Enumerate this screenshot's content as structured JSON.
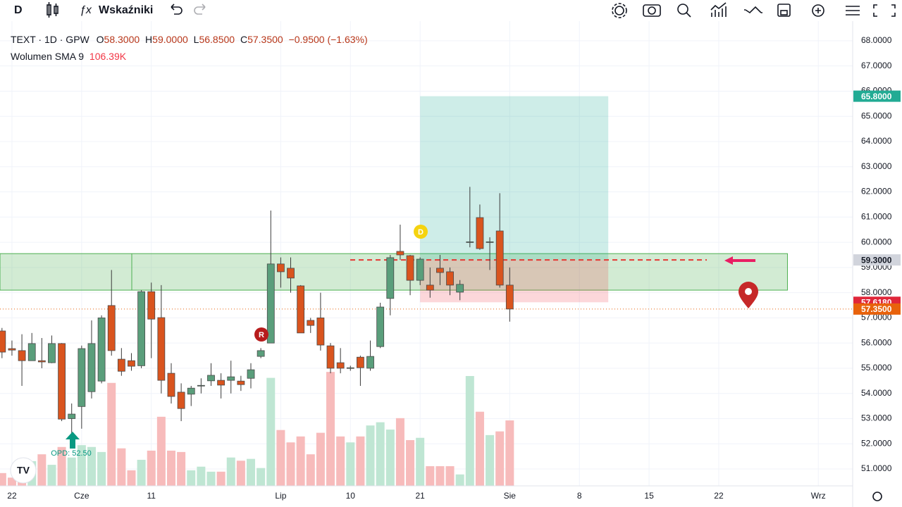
{
  "toolbar": {
    "symbol_button": "D",
    "indicators": "Wskaźniki"
  },
  "legend": {
    "symbol": "TEXT · 1D · GPW",
    "open_key": "O",
    "open": "58.3000",
    "high_key": "H",
    "high": "59.0000",
    "low_key": "L",
    "low": "56.8500",
    "close_key": "C",
    "close": "57.3500",
    "change": "−0.9500 (−1.63%)",
    "volume_name": "Wolumen SMA 9",
    "volume_value": "106.39K"
  },
  "markers": {
    "dividend": "D",
    "report": "R",
    "note": "OPD: 52.50"
  },
  "chart_data": {
    "type": "candlestick",
    "up_color": "#5a9e7b",
    "down_color": "#d9541e",
    "volume_up_color": "#bfe6d3",
    "volume_down_color": "#f7bbbb",
    "grid": true,
    "xlim": [
      -0.2,
      85.45
    ],
    "ylim": [
      50.33,
      68.78
    ],
    "volume_ylim": [
      0,
      400
    ],
    "xticks": [
      {
        "value": 1,
        "label": "22"
      },
      {
        "value": 8,
        "label": "Cze"
      },
      {
        "value": 15,
        "label": "11"
      },
      {
        "value": 28,
        "label": "Lip"
      },
      {
        "value": 35,
        "label": "10"
      },
      {
        "value": 42,
        "label": "21"
      },
      {
        "value": 51,
        "label": "Sie"
      },
      {
        "value": 58,
        "label": "8"
      },
      {
        "value": 65,
        "label": "15"
      },
      {
        "value": 72,
        "label": "22"
      },
      {
        "value": 82,
        "label": "Wrz"
      }
    ],
    "yticks": [
      {
        "value": 51,
        "label": "51.0000"
      },
      {
        "value": 52,
        "label": "52.0000"
      },
      {
        "value": 53,
        "label": "53.0000"
      },
      {
        "value": 54,
        "label": "54.0000"
      },
      {
        "value": 55,
        "label": "55.0000"
      },
      {
        "value": 56,
        "label": "56.0000"
      },
      {
        "value": 57,
        "label": "57.0000"
      },
      {
        "value": 58,
        "label": "58.0000"
      },
      {
        "value": 59,
        "label": "59.0000"
      },
      {
        "value": 60,
        "label": "60.0000"
      },
      {
        "value": 61,
        "label": "61.0000"
      },
      {
        "value": 62,
        "label": "62.0000"
      },
      {
        "value": 63,
        "label": "63.0000"
      },
      {
        "value": 64,
        "label": "64.0000"
      },
      {
        "value": 65,
        "label": "65.0000"
      },
      {
        "value": 66,
        "label": "66.0000"
      },
      {
        "value": 67,
        "label": "67.0000"
      },
      {
        "value": 68,
        "label": "68.0000"
      }
    ],
    "x": [
      0,
      1,
      2,
      3,
      4,
      5,
      6,
      7,
      8,
      9,
      10,
      11,
      12,
      13,
      14,
      15,
      16,
      17,
      18,
      19,
      20,
      21,
      22,
      23,
      24,
      25,
      26,
      27,
      28,
      29,
      30,
      31,
      32,
      33,
      34,
      35,
      36,
      37,
      38,
      39,
      40,
      41,
      42,
      43,
      44,
      45,
      46,
      47,
      48,
      49,
      50,
      51
    ],
    "open": [
      56.48,
      55.78,
      55.7,
      55.3,
      55.3,
      55.22,
      55.98,
      53.0,
      53.48,
      54.07,
      54.49,
      57.49,
      55.36,
      55.3,
      55.1,
      58.04,
      57.01,
      54.8,
      54.05,
      53.97,
      54.3,
      54.5,
      54.52,
      54.52,
      54.49,
      54.6,
      55.47,
      56.0,
      59.14,
      58.97,
      58.27,
      56.9,
      57.0,
      55.89,
      55.22,
      55.0,
      55.44,
      55.0,
      55.86,
      57.77,
      59.64,
      59.47,
      58.49,
      58.3,
      58.97,
      58.83,
      58.02,
      60.0,
      60.98,
      60.0,
      60.45,
      58.3
    ],
    "high": [
      56.6,
      56.1,
      56.35,
      56.4,
      56.2,
      56.3,
      56.0,
      53.6,
      55.9,
      56.9,
      57.1,
      58.9,
      55.8,
      55.6,
      58.1,
      58.4,
      58.3,
      55.2,
      54.4,
      54.3,
      54.6,
      55.2,
      54.8,
      55.3,
      54.7,
      55.2,
      55.8,
      61.26,
      59.4,
      59.4,
      58.3,
      57.0,
      58.0,
      56.0,
      55.8,
      55.1,
      55.5,
      56.1,
      57.6,
      59.5,
      60.7,
      59.5,
      59.4,
      59.0,
      59.5,
      59.0,
      58.5,
      62.2,
      61.5,
      60.2,
      61.95,
      59.0
    ],
    "low": [
      55.4,
      55.5,
      54.3,
      55.3,
      55.0,
      55.2,
      52.9,
      52.3,
      52.6,
      53.8,
      54.4,
      55.5,
      54.7,
      54.9,
      55.0,
      55.4,
      54.0,
      53.6,
      52.9,
      53.5,
      54.0,
      54.3,
      53.8,
      54.0,
      54.1,
      54.2,
      55.4,
      56.0,
      58.2,
      58.0,
      56.4,
      56.4,
      55.7,
      54.8,
      54.8,
      54.9,
      54.3,
      54.9,
      55.8,
      57.1,
      59.3,
      57.9,
      58.3,
      57.8,
      58.3,
      57.9,
      57.7,
      59.8,
      59.7,
      58.9,
      58.2,
      56.85
    ],
    "close": [
      55.64,
      55.72,
      55.3,
      55.98,
      55.25,
      55.98,
      52.98,
      53.18,
      55.78,
      55.98,
      57.0,
      55.7,
      54.88,
      55.08,
      58.04,
      56.95,
      54.52,
      53.88,
      53.4,
      54.21,
      54.32,
      54.72,
      54.33,
      54.66,
      54.35,
      54.94,
      55.7,
      59.14,
      58.83,
      58.58,
      56.4,
      56.7,
      55.92,
      55.0,
      55.0,
      55.02,
      55.02,
      55.47,
      57.43,
      59.39,
      59.5,
      58.49,
      59.33,
      58.1,
      58.8,
      58.3,
      58.33,
      60.02,
      59.75,
      60.02,
      58.3,
      57.35
    ],
    "volume": [
      28,
      18,
      46,
      54,
      69,
      46,
      85,
      62,
      89,
      85,
      74,
      225,
      82,
      34,
      57,
      77,
      151,
      77,
      74,
      34,
      42,
      31,
      31,
      62,
      55,
      59,
      39,
      236,
      122,
      95,
      108,
      69,
      116,
      249,
      108,
      95,
      108,
      132,
      139,
      123,
      148,
      100,
      105,
      43,
      43,
      43,
      25,
      240,
      162,
      111,
      119,
      143
    ],
    "zone": {
      "low": 58.1,
      "high": 59.55,
      "start": -0.2,
      "end": 78.9
    },
    "position": {
      "entry": 59.3,
      "target": 65.8,
      "stop": 57.618,
      "start": 42,
      "end": 60.9
    },
    "price_labels": [
      {
        "value": 65.8,
        "label": "65.8000",
        "color": "#22ab94"
      },
      {
        "value": 59.3,
        "label": "59.3000",
        "color": "#d1d4dc"
      },
      {
        "value": 57.618,
        "label": "57.6180",
        "color": "#e0263a"
      },
      {
        "value": 57.35,
        "label": "57.3500",
        "color": "#e8620c"
      }
    ]
  }
}
